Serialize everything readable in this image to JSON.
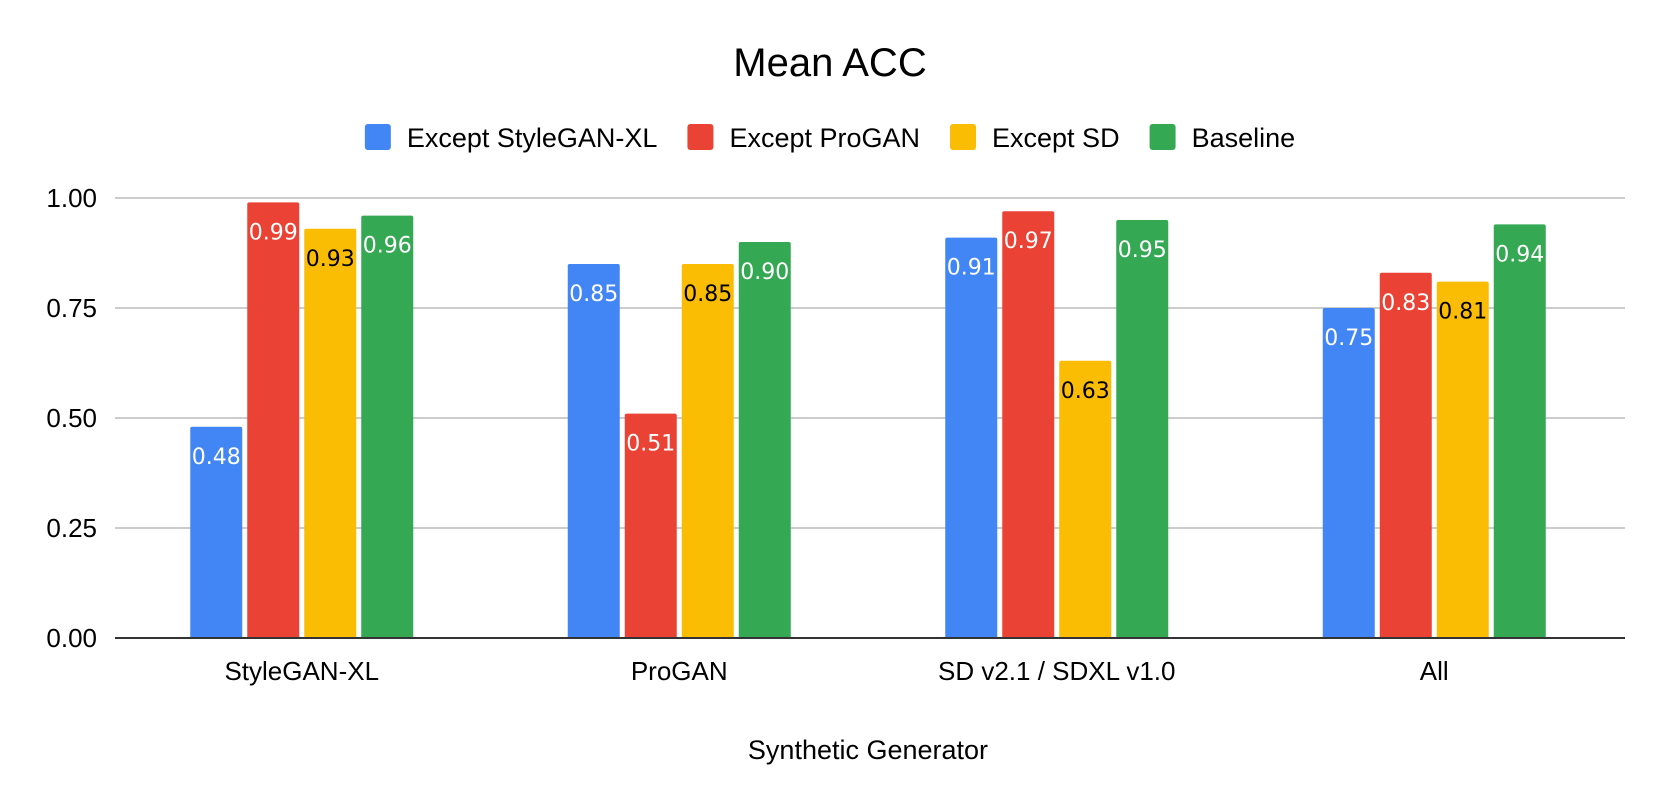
{
  "chart_data": {
    "type": "bar",
    "title": "Mean ACC",
    "xlabel": "Synthetic Generator",
    "ylabel": "",
    "ylim": [
      0,
      1
    ],
    "yticks": [
      "0.00",
      "0.25",
      "0.50",
      "0.75",
      "1.00"
    ],
    "ytick_values": [
      0,
      0.25,
      0.5,
      0.75,
      1.0
    ],
    "grid": true,
    "legend_position": "top",
    "categories": [
      "StyleGAN-XL",
      "ProGAN",
      "SD v2.1 / SDXL v1.0",
      "All"
    ],
    "series": [
      {
        "name": "Except StyleGAN-XL",
        "color": "#4285F4",
        "label_color": "#ffffff",
        "values": [
          0.48,
          0.85,
          0.91,
          0.75
        ],
        "labels": [
          "0.48",
          "0.85",
          "0.91",
          "0.75"
        ]
      },
      {
        "name": "Except ProGAN",
        "color": "#EA4335",
        "label_color": "#ffffff",
        "values": [
          0.99,
          0.51,
          0.97,
          0.83
        ],
        "labels": [
          "0.99",
          "0.51",
          "0.97",
          "0.83"
        ]
      },
      {
        "name": "Except SD",
        "color": "#FBBC04",
        "label_color": "#000000",
        "values": [
          0.93,
          0.85,
          0.63,
          0.81
        ],
        "labels": [
          "0.93",
          "0.85",
          "0.63",
          "0.81"
        ]
      },
      {
        "name": "Baseline",
        "color": "#34A853",
        "label_color": "#ffffff",
        "values": [
          0.96,
          0.9,
          0.95,
          0.94
        ],
        "labels": [
          "0.96",
          "0.90",
          "0.95",
          "0.94"
        ]
      }
    ]
  }
}
